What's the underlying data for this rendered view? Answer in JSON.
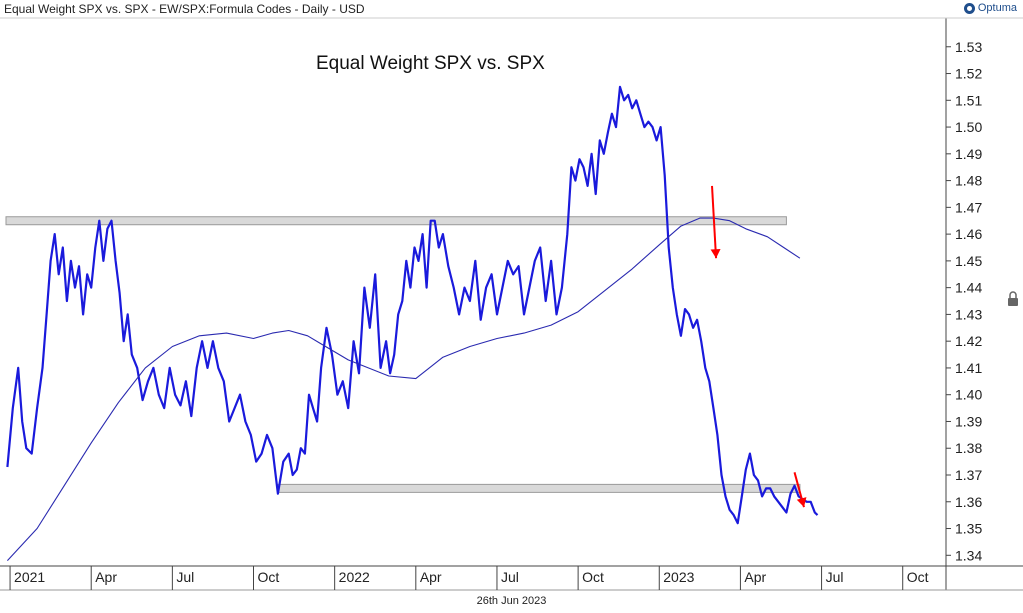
{
  "header": {
    "title": "Equal Weight SPX vs. SPX - EW/SPX:Formula Codes - Daily - USD",
    "brand": "Optuma"
  },
  "footer": {
    "date": "26th Jun 2023"
  },
  "chart_data": {
    "type": "line",
    "title": "Equal Weight SPX vs. SPX",
    "y_ticks": [
      1.34,
      1.35,
      1.36,
      1.37,
      1.38,
      1.39,
      1.4,
      1.41,
      1.42,
      1.43,
      1.44,
      1.45,
      1.46,
      1.47,
      1.48,
      1.49,
      1.5,
      1.51,
      1.52,
      1.53
    ],
    "ylim": [
      1.336,
      1.54
    ],
    "x_tick_labels": [
      {
        "label": "2021",
        "t": 0.0
      },
      {
        "label": "Apr",
        "t": 3.0
      },
      {
        "label": "Jul",
        "t": 6.0
      },
      {
        "label": "Oct",
        "t": 9.0
      },
      {
        "label": "2022",
        "t": 12.0
      },
      {
        "label": "Apr",
        "t": 15.0
      },
      {
        "label": "Jul",
        "t": 18.0
      },
      {
        "label": "Oct",
        "t": 21.0
      },
      {
        "label": "2023",
        "t": 24.0
      },
      {
        "label": "Apr",
        "t": 27.0
      },
      {
        "label": "Jul",
        "t": 30.0
      },
      {
        "label": "Oct",
        "t": 33.0
      }
    ],
    "xlim": [
      -0.15,
      34.6
    ],
    "series": [
      {
        "role": "price",
        "color": "#1a1adc",
        "x": [
          -0.1,
          0.1,
          0.3,
          0.45,
          0.6,
          0.8,
          1.0,
          1.2,
          1.35,
          1.5,
          1.65,
          1.8,
          1.95,
          2.1,
          2.25,
          2.4,
          2.55,
          2.7,
          2.85,
          3.0,
          3.15,
          3.3,
          3.45,
          3.6,
          3.75,
          3.9,
          4.05,
          4.2,
          4.35,
          4.5,
          4.7,
          4.9,
          5.1,
          5.3,
          5.5,
          5.7,
          5.9,
          6.1,
          6.3,
          6.5,
          6.7,
          6.9,
          7.1,
          7.3,
          7.5,
          7.7,
          7.9,
          8.1,
          8.3,
          8.5,
          8.7,
          8.9,
          9.1,
          9.3,
          9.5,
          9.7,
          9.9,
          10.1,
          10.3,
          10.45,
          10.6,
          10.75,
          10.9,
          11.05,
          11.2,
          11.35,
          11.5,
          11.7,
          11.9,
          12.1,
          12.3,
          12.5,
          12.7,
          12.9,
          13.1,
          13.3,
          13.5,
          13.7,
          13.9,
          14.05,
          14.2,
          14.35,
          14.5,
          14.65,
          14.8,
          14.95,
          15.1,
          15.25,
          15.4,
          15.55,
          15.7,
          15.85,
          16.0,
          16.2,
          16.4,
          16.6,
          16.8,
          17.0,
          17.2,
          17.4,
          17.6,
          17.8,
          18.0,
          18.2,
          18.4,
          18.6,
          18.8,
          19.0,
          19.2,
          19.4,
          19.6,
          19.8,
          20.0,
          20.2,
          20.4,
          20.6,
          20.75,
          20.9,
          21.05,
          21.2,
          21.35,
          21.5,
          21.65,
          21.8,
          21.95,
          22.1,
          22.25,
          22.4,
          22.55,
          22.7,
          22.85,
          23.0,
          23.15,
          23.3,
          23.45,
          23.6,
          23.75,
          23.9,
          24.05,
          24.2,
          24.35,
          24.5,
          24.65,
          24.8,
          24.95,
          25.1,
          25.25,
          25.4,
          25.55,
          25.7,
          25.85,
          26.0,
          26.15,
          26.3,
          26.45,
          26.6,
          26.75,
          26.9,
          27.05,
          27.2,
          27.35,
          27.5,
          27.65,
          27.8,
          27.95,
          28.1,
          28.25,
          28.4,
          28.55,
          28.7,
          28.85,
          29.0,
          29.15,
          29.3,
          29.45,
          29.6,
          29.75,
          29.85
        ],
        "y": [
          1.373,
          1.395,
          1.41,
          1.39,
          1.38,
          1.378,
          1.395,
          1.41,
          1.43,
          1.45,
          1.46,
          1.445,
          1.455,
          1.435,
          1.45,
          1.44,
          1.448,
          1.43,
          1.445,
          1.44,
          1.455,
          1.465,
          1.45,
          1.462,
          1.465,
          1.45,
          1.438,
          1.42,
          1.43,
          1.415,
          1.41,
          1.398,
          1.405,
          1.41,
          1.4,
          1.395,
          1.41,
          1.4,
          1.396,
          1.405,
          1.392,
          1.41,
          1.42,
          1.41,
          1.42,
          1.41,
          1.405,
          1.39,
          1.395,
          1.4,
          1.39,
          1.385,
          1.375,
          1.378,
          1.385,
          1.38,
          1.363,
          1.375,
          1.378,
          1.37,
          1.372,
          1.38,
          1.378,
          1.4,
          1.395,
          1.39,
          1.41,
          1.425,
          1.415,
          1.4,
          1.405,
          1.395,
          1.42,
          1.408,
          1.44,
          1.425,
          1.445,
          1.41,
          1.42,
          1.408,
          1.415,
          1.43,
          1.435,
          1.45,
          1.44,
          1.455,
          1.45,
          1.46,
          1.44,
          1.465,
          1.465,
          1.455,
          1.46,
          1.448,
          1.44,
          1.43,
          1.44,
          1.435,
          1.45,
          1.428,
          1.44,
          1.445,
          1.43,
          1.44,
          1.45,
          1.445,
          1.448,
          1.43,
          1.44,
          1.45,
          1.455,
          1.435,
          1.45,
          1.43,
          1.44,
          1.46,
          1.485,
          1.48,
          1.488,
          1.485,
          1.478,
          1.49,
          1.475,
          1.495,
          1.49,
          1.498,
          1.505,
          1.5,
          1.515,
          1.51,
          1.512,
          1.507,
          1.51,
          1.505,
          1.5,
          1.502,
          1.5,
          1.495,
          1.5,
          1.482,
          1.455,
          1.44,
          1.43,
          1.422,
          1.432,
          1.43,
          1.425,
          1.428,
          1.42,
          1.41,
          1.405,
          1.395,
          1.385,
          1.37,
          1.362,
          1.357,
          1.355,
          1.352,
          1.362,
          1.372,
          1.378,
          1.37,
          1.368,
          1.362,
          1.365,
          1.365,
          1.362,
          1.36,
          1.358,
          1.356,
          1.363,
          1.366,
          1.362,
          1.361,
          1.36,
          1.36,
          1.356,
          1.355
        ]
      },
      {
        "role": "moving-average",
        "color": "#2a2ab0",
        "x": [
          -0.1,
          1.0,
          2.0,
          3.0,
          4.0,
          5.0,
          6.0,
          7.0,
          8.0,
          9.0,
          9.7,
          10.3,
          11.0,
          11.5,
          12.0,
          12.5,
          13.0,
          14.0,
          15.0,
          15.5,
          16.0,
          17.0,
          18.0,
          19.0,
          20.0,
          21.0,
          22.0,
          23.0,
          24.0,
          24.8,
          25.5,
          26.0,
          26.6,
          27.2,
          28.0,
          28.6,
          29.2
        ],
        "y": [
          1.338,
          1.35,
          1.366,
          1.382,
          1.397,
          1.41,
          1.418,
          1.422,
          1.423,
          1.421,
          1.423,
          1.424,
          1.422,
          1.419,
          1.416,
          1.413,
          1.411,
          1.407,
          1.406,
          1.41,
          1.414,
          1.418,
          1.421,
          1.423,
          1.426,
          1.431,
          1.439,
          1.447,
          1.456,
          1.463,
          1.466,
          1.466,
          1.465,
          1.462,
          1.459,
          1.455,
          1.451
        ]
      }
    ],
    "horizontal_bands": [
      {
        "x": [
          -0.15,
          28.7
        ],
        "y": 1.465
      },
      {
        "x": [
          9.9,
          29.2
        ],
        "y": 1.365
      }
    ],
    "arrows": [
      {
        "color": "#ff0000",
        "from": [
          25.95,
          1.478
        ],
        "to": [
          26.1,
          1.451
        ]
      },
      {
        "color": "#ff0000",
        "from": [
          29.0,
          1.371
        ],
        "to": [
          29.35,
          1.358
        ]
      }
    ],
    "grid": false
  }
}
